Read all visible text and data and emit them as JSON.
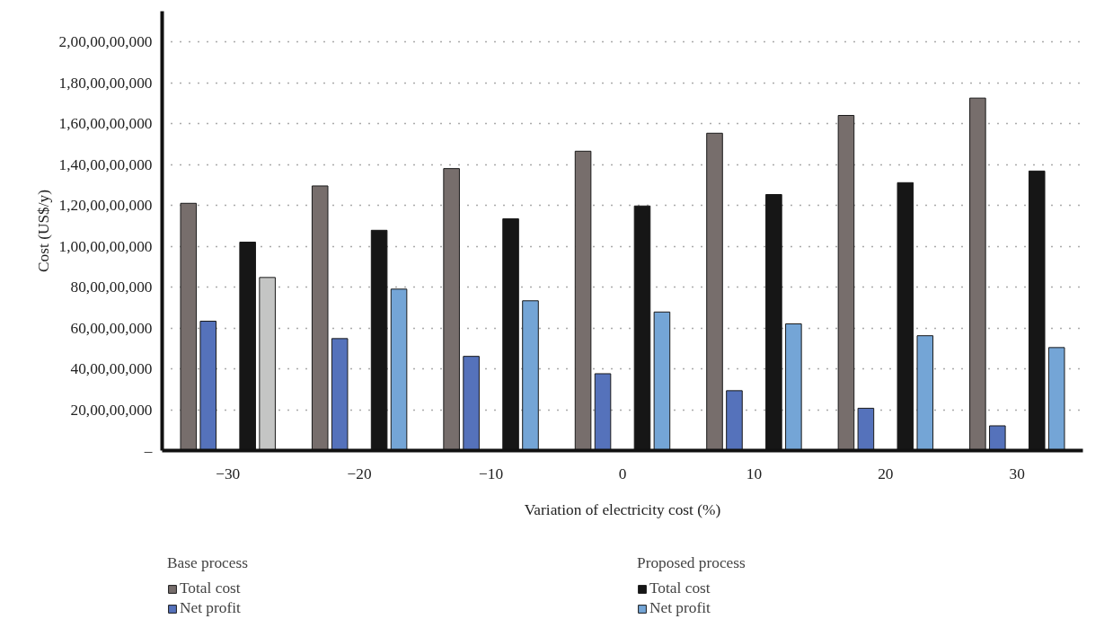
{
  "chart_data": {
    "type": "bar",
    "categories": [
      "−30",
      "−20",
      "−10",
      "0",
      "10",
      "20",
      "30"
    ],
    "xlabel": "Variation of electricity cost (%)",
    "ylabel": "Cost (US$/y)",
    "annotations": [
      "Base process",
      "Proposed process"
    ],
    "series": [
      {
        "name": "Total cost",
        "color": "#776e6c",
        "values": [
          1210000000,
          1295000000,
          1380000000,
          1465000000,
          1553000000,
          1640000000,
          1725000000
        ]
      },
      {
        "name": "Net profit",
        "color": "#5572bb",
        "values": [
          633000000,
          548000000,
          461000000,
          376000000,
          293000000,
          207000000,
          121000000
        ]
      },
      {
        "name": "Total cost",
        "color": "#161616",
        "values": [
          1020000000,
          1078000000,
          1134000000,
          1197000000,
          1253000000,
          1311000000,
          1368000000
        ]
      },
      {
        "name": "Net profit",
        "color": "#74a5d6",
        "colors": [
          "#c4c5c4",
          "#74a5d6",
          "#74a5d6",
          "#74a5d6",
          "#74a5d6",
          "#74a5d6",
          "#74a5d6"
        ],
        "values": [
          847000000,
          790000000,
          733000000,
          678000000,
          620000000,
          562000000,
          504000000
        ]
      }
    ],
    "ylim": [
      0,
      2150000000
    ],
    "yticks": [
      {
        "value": 0,
        "label": "–"
      },
      {
        "value": 200000000,
        "label": "20,00,00,000"
      },
      {
        "value": 400000000,
        "label": "40,00,00,000"
      },
      {
        "value": 600000000,
        "label": "60,00,00,000"
      },
      {
        "value": 800000000,
        "label": "80,00,00,000"
      },
      {
        "value": 1000000000,
        "label": "1,00,00,00,000"
      },
      {
        "value": 1200000000,
        "label": "1,20,00,00,000"
      },
      {
        "value": 1400000000,
        "label": "1,40,00,00,000"
      },
      {
        "value": 1600000000,
        "label": "1,60,00,00,000"
      },
      {
        "value": 1800000000,
        "label": "1,80,00,00,000"
      },
      {
        "value": 2000000000,
        "label": "2,00,00,00,000"
      }
    ],
    "grid": "y",
    "legend": "bottom"
  }
}
